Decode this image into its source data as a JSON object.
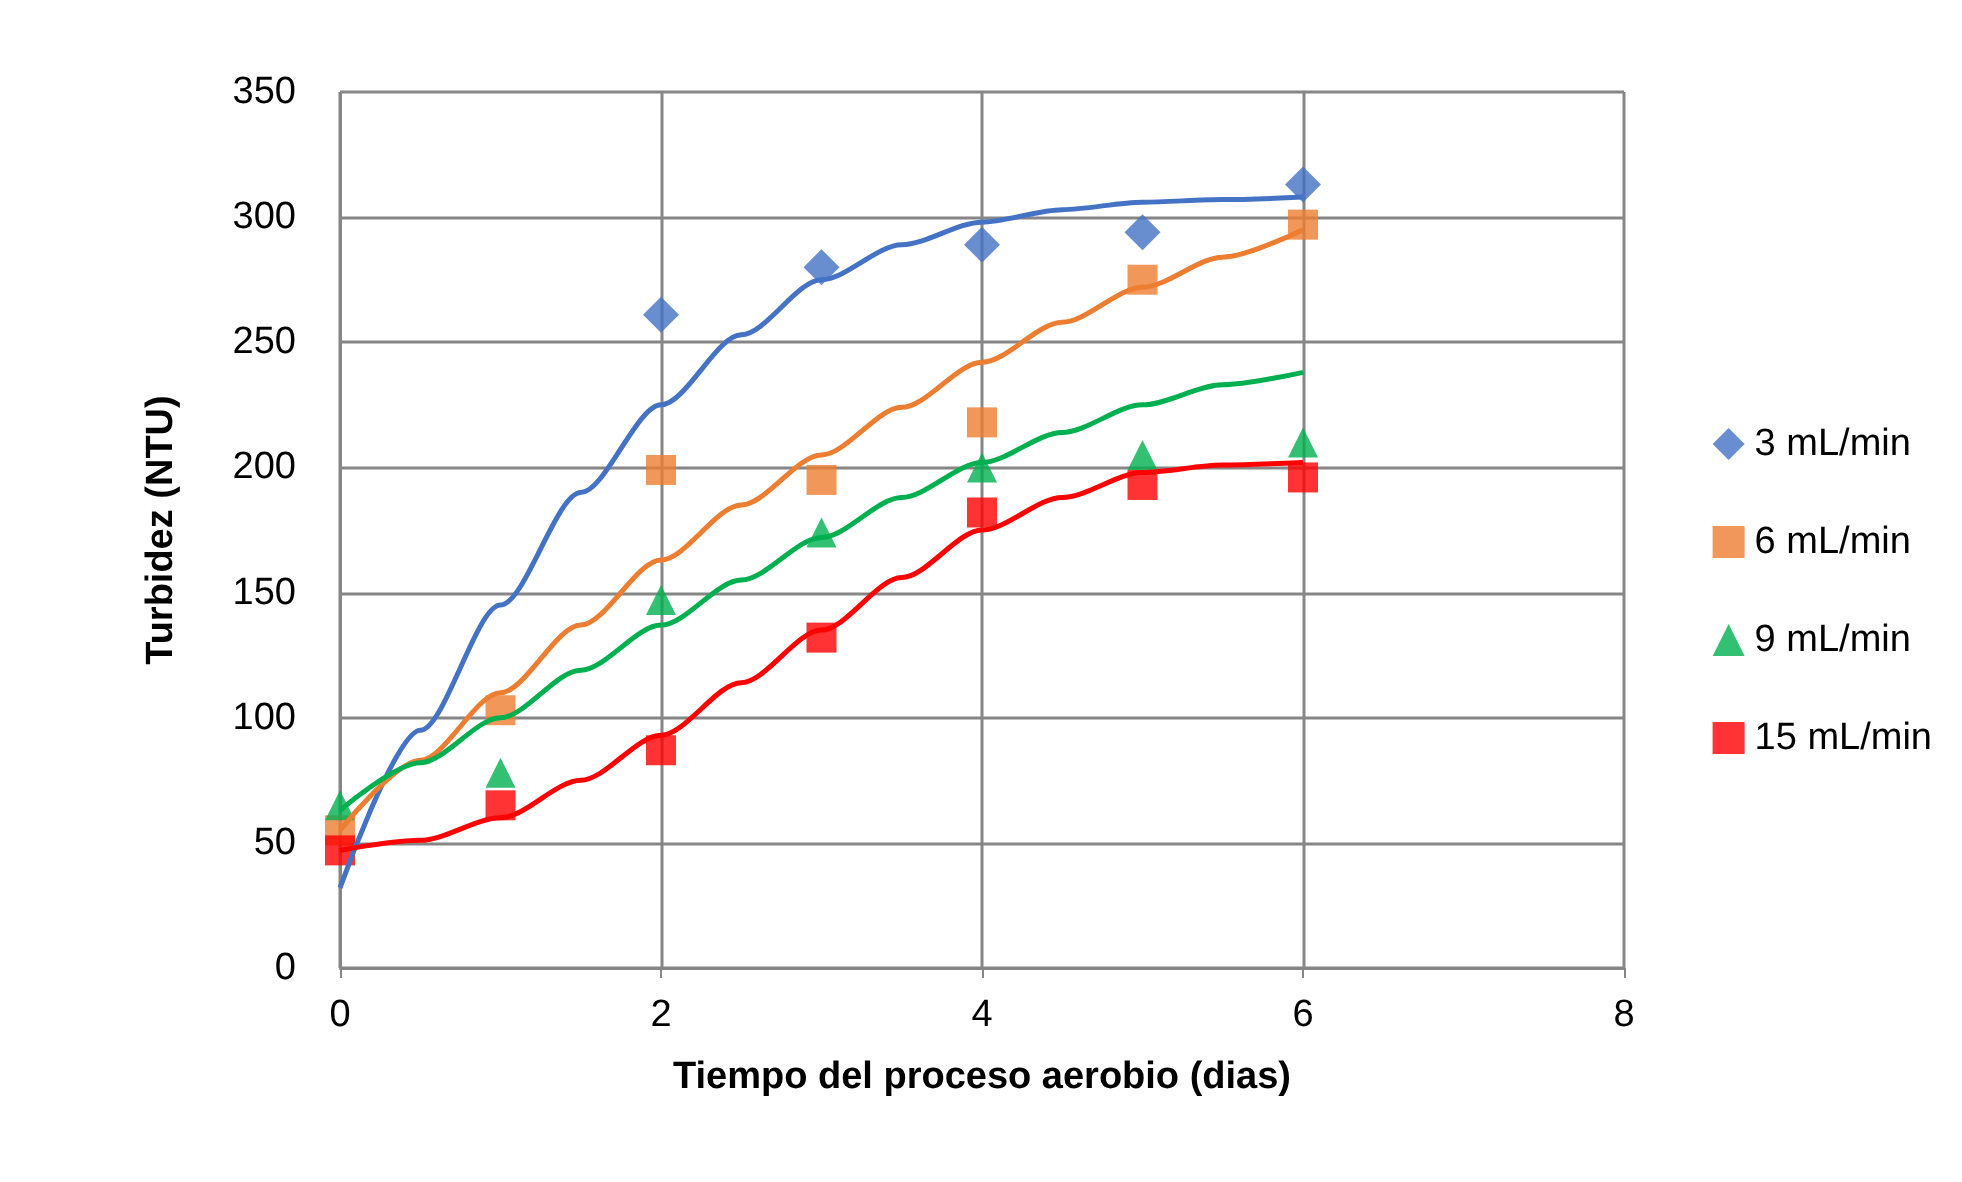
{
  "chart_data": {
    "type": "scatter",
    "xlabel": "Tiempo del proceso aerobio (dias)",
    "ylabel": "Turbidez (NTU)",
    "xlim": [
      0,
      8
    ],
    "xticks": [
      0,
      2,
      4,
      6,
      8
    ],
    "ylim": [
      0,
      350
    ],
    "yticks": [
      0,
      50,
      100,
      150,
      200,
      250,
      300,
      350
    ],
    "grid": true,
    "legend": "right",
    "x": [
      0,
      1,
      2,
      3,
      4,
      5,
      6
    ],
    "series": [
      {
        "name": "3 mL/min",
        "color": "#4472c4",
        "marker": "diamond",
        "values": [
          null,
          null,
          261,
          280,
          289,
          294,
          313
        ]
      },
      {
        "name": "6 mL/min",
        "color": "#ed7d31",
        "marker": "square",
        "values": [
          55,
          103,
          199,
          195,
          218,
          275,
          297
        ]
      },
      {
        "name": "9 mL/min",
        "color": "#00b050",
        "marker": "triangle",
        "values": [
          65,
          78,
          147,
          174,
          200,
          205,
          210
        ]
      },
      {
        "name": "15 mL/min",
        "color": "#ff0000",
        "marker": "square",
        "values": [
          47,
          65,
          87,
          132,
          182,
          193,
          196
        ]
      },
      {
        "type": "line",
        "color": "#4472c4",
        "marker": "none",
        "x": [
          0,
          0.5,
          1,
          1.5,
          2,
          2.5,
          3,
          3.5,
          4,
          4.5,
          5,
          5.5,
          6
        ],
        "values": [
          32,
          95,
          145,
          190,
          225,
          253,
          275,
          289,
          298,
          303,
          306,
          307,
          308
        ]
      },
      {
        "type": "line",
        "color": "#ed7d31",
        "marker": "none",
        "x": [
          0,
          0.5,
          1,
          1.5,
          2,
          2.5,
          3,
          3.5,
          4,
          4.5,
          5,
          5.5,
          6
        ],
        "values": [
          55,
          83,
          110,
          137,
          163,
          185,
          205,
          224,
          242,
          258,
          272,
          284,
          295
        ]
      },
      {
        "type": "line",
        "color": "#00b050",
        "marker": "none",
        "x": [
          0,
          0.5,
          1,
          1.5,
          2,
          2.5,
          3,
          3.5,
          4,
          4.5,
          5,
          5.5,
          6
        ],
        "values": [
          63,
          82,
          100,
          119,
          137,
          155,
          172,
          188,
          202,
          214,
          225,
          233,
          238
        ]
      },
      {
        "type": "line",
        "color": "#ff0000",
        "marker": "none",
        "x": [
          0,
          0.5,
          1,
          1.5,
          2,
          2.5,
          3,
          3.5,
          4,
          4.5,
          5,
          5.5,
          6
        ],
        "values": [
          47,
          51,
          60,
          75,
          93,
          114,
          135,
          156,
          175,
          188,
          198,
          201,
          202
        ]
      }
    ]
  }
}
